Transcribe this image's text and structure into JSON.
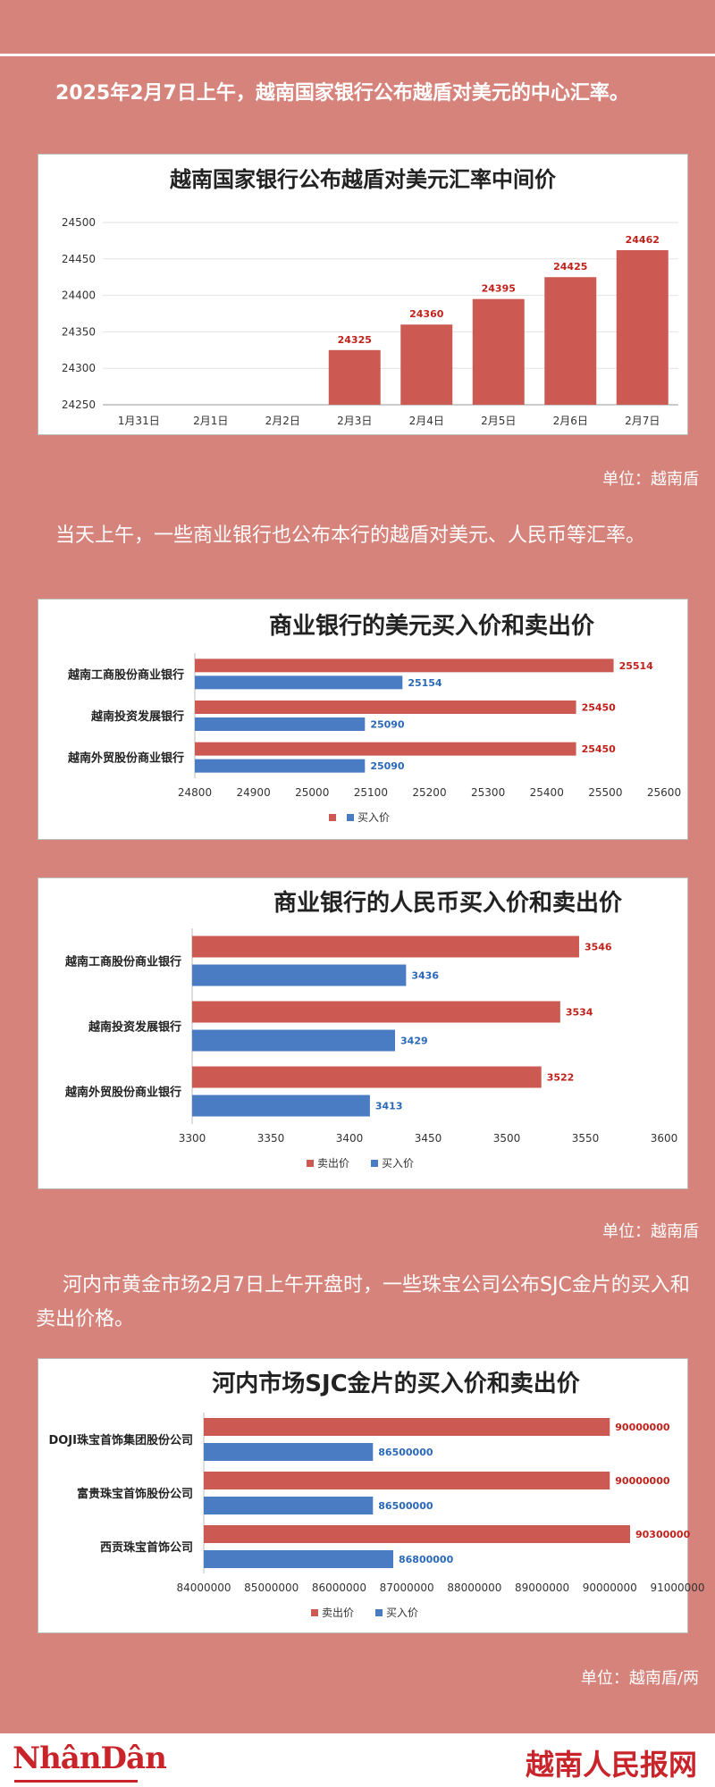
{
  "intro_text": "2025年2月7日上午，越南国家银行公布越盾对美元的中心汇率。",
  "unit1": "单位：越南盾",
  "para2": "当天上午，一些商业银行也公布本行的越盾对美元、人民币等汇率。",
  "unit2": "单位：越南盾",
  "para3": "河内市黄金市场2月7日上午开盘时，一些珠宝公司公布SJC金片的买入和卖出价格。",
  "unit3": "单位：越南盾/两",
  "footer": {
    "left_logo": "NhânDân",
    "right_logo": "越南人民报网"
  },
  "colors": {
    "sell": "#cc5a52",
    "buy": "#4a7cc4",
    "background": "#d6837b"
  },
  "chart_data": [
    {
      "type": "bar",
      "title": "越南国家银行公布越盾对美元汇率中间价",
      "categories": [
        "1月31日",
        "2月1日",
        "2月2日",
        "2月3日",
        "2月4日",
        "2月5日",
        "2月6日",
        "2月7日"
      ],
      "values": [
        null,
        null,
        null,
        24325,
        24360,
        24395,
        24425,
        24462
      ],
      "ylim": [
        24250,
        24500
      ],
      "yticks": [
        "24250",
        "24300",
        "24350",
        "24400",
        "24450",
        "24500"
      ],
      "grid": true,
      "color": "#cc5a52"
    },
    {
      "type": "bar",
      "orientation": "horizontal",
      "title": "商业银行的美元买入价和卖出价",
      "categories": [
        "越南工商股份商业银行",
        "越南投资发展银行",
        "越南外贸股份商业银行"
      ],
      "series": [
        {
          "name": "",
          "values": [
            25514,
            25450,
            25450
          ],
          "color": "#cc5a52"
        },
        {
          "name": "买入价",
          "values": [
            25154,
            25090,
            25090
          ],
          "color": "#4a7cc4"
        }
      ],
      "xlim": [
        24800,
        25600
      ],
      "xticks": [
        "24800",
        "24900",
        "25000",
        "25100",
        "25200",
        "25300",
        "25400",
        "25500",
        "25600"
      ],
      "legend": "bottom"
    },
    {
      "type": "bar",
      "orientation": "horizontal",
      "title": "商业银行的人民币买入价和卖出价",
      "categories": [
        "越南工商股份商业银行",
        "越南投资发展银行",
        "越南外贸股份商业银行"
      ],
      "series": [
        {
          "name": "卖出价",
          "values": [
            3546,
            3534,
            3522
          ],
          "color": "#cc5a52"
        },
        {
          "name": "买入价",
          "values": [
            3436,
            3429,
            3413
          ],
          "color": "#4a7cc4"
        }
      ],
      "xlim": [
        3300,
        3600
      ],
      "xticks": [
        "3300",
        "3350",
        "3400",
        "3450",
        "3500",
        "3550",
        "3600"
      ],
      "legend": "bottom"
    },
    {
      "type": "bar",
      "orientation": "horizontal",
      "title": "河内市场SJC金片的买入价和卖出价",
      "categories": [
        "DOJI珠宝首饰集团股份公司",
        "富贵珠宝首饰股份公司",
        "西贡珠宝首饰公司"
      ],
      "series": [
        {
          "name": "卖出价",
          "values": [
            90000000,
            90000000,
            90300000
          ],
          "color": "#cc5a52"
        },
        {
          "name": "买入价",
          "values": [
            86500000,
            86500000,
            86800000
          ],
          "color": "#4a7cc4"
        }
      ],
      "xlim": [
        84000000,
        91000000
      ],
      "xticks": [
        "84000000",
        "85000000",
        "86000000",
        "87000000",
        "88000000",
        "89000000",
        "90000000",
        "91000000"
      ],
      "legend": "bottom"
    }
  ]
}
